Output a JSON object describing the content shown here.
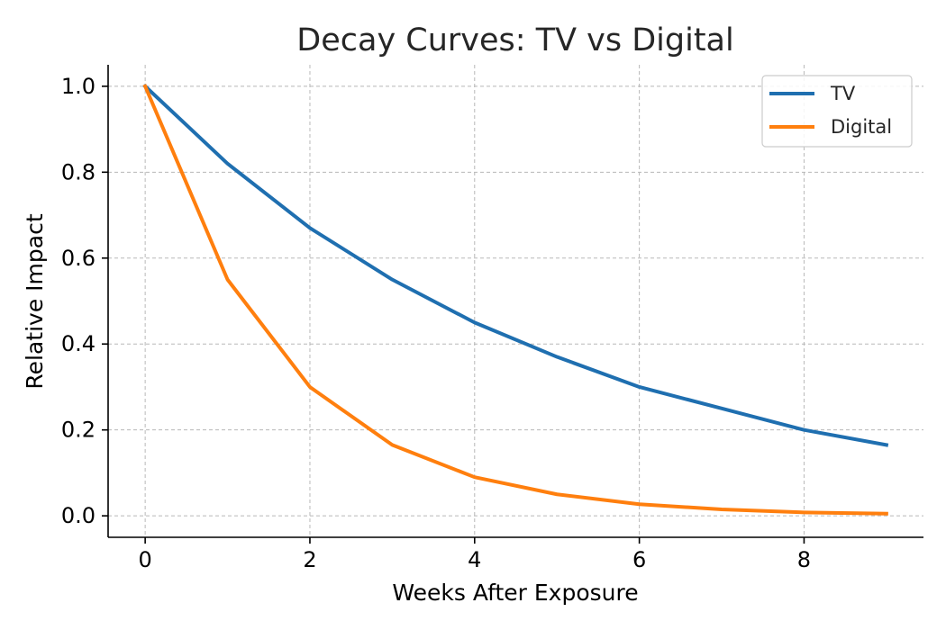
{
  "chart_data": {
    "type": "line",
    "title": "Decay Curves: TV vs Digital",
    "xlabel": "Weeks After Exposure",
    "ylabel": "Relative Impact",
    "x": [
      0,
      1,
      2,
      3,
      4,
      5,
      6,
      7,
      8,
      9
    ],
    "xlim": [
      -0.45,
      9.45
    ],
    "ylim": [
      -0.05,
      1.05
    ],
    "xticks": [
      0,
      2,
      4,
      6,
      8
    ],
    "xtick_labels": [
      "0",
      "2",
      "4",
      "6",
      "8"
    ],
    "yticks": [
      0.0,
      0.2,
      0.4,
      0.6,
      0.8,
      1.0
    ],
    "ytick_labels": [
      "0.0",
      "0.2",
      "0.4",
      "0.6",
      "0.8",
      "1.0"
    ],
    "grid": true,
    "legend_position": "top-right",
    "series": [
      {
        "name": "TV",
        "color": "#1f6fb0",
        "values": [
          1.0,
          0.82,
          0.67,
          0.55,
          0.45,
          0.37,
          0.3,
          0.25,
          0.2,
          0.165
        ]
      },
      {
        "name": "Digital",
        "color": "#ff7f0e",
        "values": [
          1.0,
          0.55,
          0.3,
          0.165,
          0.09,
          0.05,
          0.027,
          0.015,
          0.008,
          0.005
        ]
      }
    ]
  }
}
